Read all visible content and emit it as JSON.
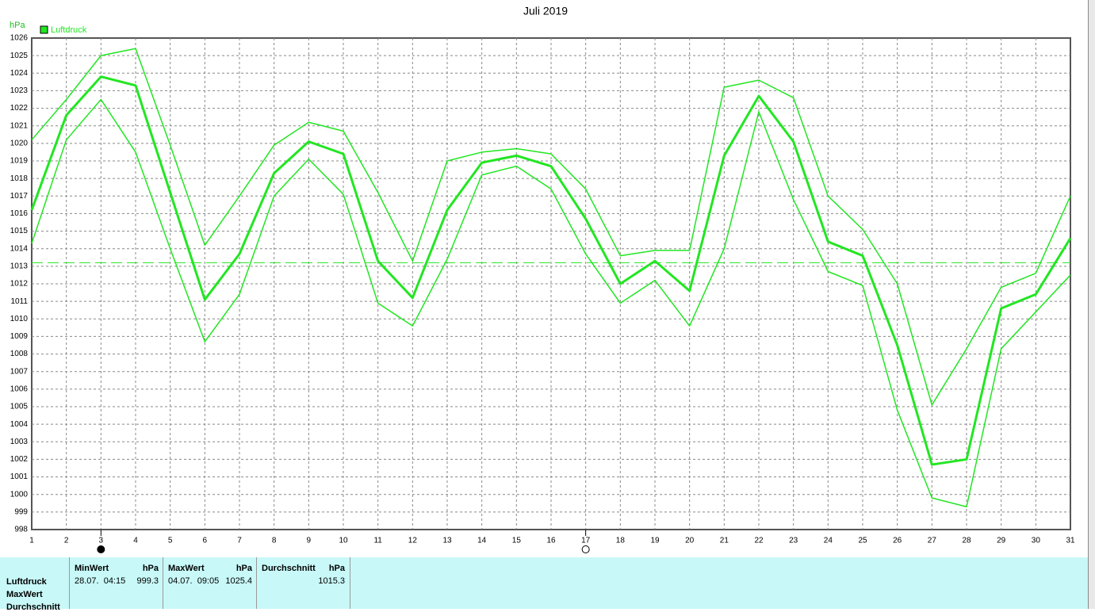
{
  "chart_data": {
    "type": "line",
    "title": "Juli 2019",
    "ylabel": "hPa",
    "x": [
      1,
      2,
      3,
      4,
      5,
      6,
      7,
      8,
      9,
      10,
      11,
      12,
      13,
      14,
      15,
      16,
      17,
      18,
      19,
      20,
      21,
      22,
      23,
      24,
      25,
      26,
      27,
      28,
      29,
      30,
      31
    ],
    "xlim": [
      1,
      31
    ],
    "xticks": [
      1,
      2,
      3,
      4,
      5,
      6,
      7,
      8,
      9,
      10,
      11,
      12,
      13,
      14,
      15,
      16,
      17,
      18,
      19,
      20,
      21,
      22,
      23,
      24,
      25,
      26,
      27,
      28,
      29,
      30,
      31
    ],
    "ylim": [
      998,
      1026
    ],
    "yticks": [
      998,
      999,
      1000,
      1001,
      1002,
      1003,
      1004,
      1005,
      1006,
      1007,
      1008,
      1009,
      1010,
      1011,
      1012,
      1013,
      1014,
      1015,
      1016,
      1017,
      1018,
      1019,
      1020,
      1021,
      1022,
      1023,
      1024,
      1025,
      1026
    ],
    "grid": true,
    "legend": "top-left",
    "series": [
      {
        "name": "Luftdruck",
        "color": "#22e622",
        "line_width": 3,
        "values": [
          1016.2,
          1021.6,
          1023.8,
          1023.3,
          1017.2,
          1011.1,
          1013.7,
          1018.3,
          1020.1,
          1019.4,
          1013.3,
          1011.2,
          1016.2,
          1018.9,
          1019.3,
          1018.7,
          1015.7,
          1012.0,
          1013.3,
          1011.6,
          1019.3,
          1022.7,
          1020.1,
          1014.4,
          1013.6,
          1008.5,
          1001.7,
          1002.0,
          1010.6,
          1011.4,
          1014.6
        ]
      },
      {
        "color": "#22e622",
        "line_width": 1.5,
        "values": [
          1020.2,
          1022.5,
          1025.0,
          1025.4,
          1019.9,
          1014.2,
          1017.0,
          1019.9,
          1021.2,
          1020.7,
          1017.2,
          1013.3,
          1019.0,
          1019.5,
          1019.7,
          1019.4,
          1017.4,
          1013.6,
          1013.9,
          1013.9,
          1023.2,
          1023.6,
          1022.6,
          1017.0,
          1015.1,
          1012.0,
          1005.1,
          1008.3,
          1011.8,
          1012.6,
          1017.0
        ]
      },
      {
        "color": "#22e622",
        "line_width": 1.5,
        "values": [
          1014.3,
          1020.2,
          1022.5,
          1019.5,
          1014.0,
          1008.7,
          1011.4,
          1017.0,
          1019.1,
          1017.1,
          1010.9,
          1009.6,
          1013.4,
          1018.2,
          1018.7,
          1017.4,
          1013.7,
          1010.9,
          1012.2,
          1009.6,
          1014.0,
          1021.8,
          1016.8,
          1012.7,
          1011.9,
          1004.8,
          999.8,
          999.3,
          1008.3,
          1010.4,
          1012.5
        ]
      }
    ],
    "reference_line": 1013.2,
    "moon_phases": [
      {
        "x": 3,
        "fill": "#000000"
      },
      {
        "x": 17,
        "fill": "#ffffff"
      }
    ]
  },
  "table": {
    "row_labels": [
      "Luftdruck",
      "MaxWert",
      "Durchschnitt"
    ],
    "columns": [
      {
        "header": "MinWert",
        "unit": "hPa",
        "time": "28.07.  04:15",
        "value": "999.3"
      },
      {
        "header": "MaxWert",
        "unit": "hPa",
        "time": "04.07.  09:05",
        "value": "1025.4"
      },
      {
        "header": "Durchschnitt",
        "unit": "hPa",
        "value": "1015.3"
      }
    ]
  }
}
